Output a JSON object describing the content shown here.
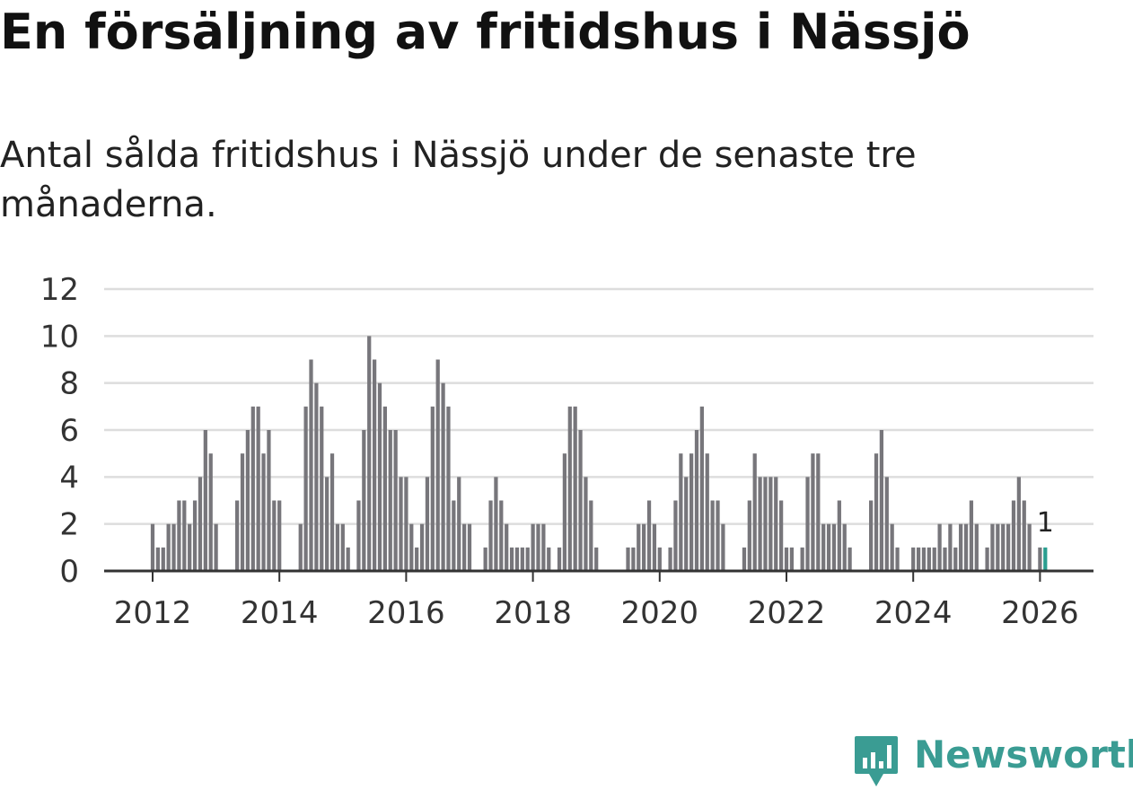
{
  "title": "En försäljning av fritidshus i Nässjö",
  "subtitle": "Antal sålda fritidshus i Nässjö under de senaste tre månaderna.",
  "brand": {
    "name": "Newsworthy",
    "color": "#3a9c93"
  },
  "colors": {
    "bar": "#77767b",
    "highlight": "#2a9d8f",
    "grid": "#dddddd",
    "axis": "#333333"
  },
  "chart_data": {
    "type": "bar",
    "title": "En försäljning av fritidshus i Nässjö",
    "xlabel": "",
    "ylabel": "",
    "ylim": [
      0,
      12
    ],
    "yticks": [
      0,
      2,
      4,
      6,
      8,
      10,
      12
    ],
    "xticks": [
      "2012",
      "2014",
      "2016",
      "2018",
      "2020",
      "2022",
      "2024",
      "2026"
    ],
    "start": "2012-01",
    "end": "2026-02",
    "highlight_label": "1",
    "values": [
      2,
      1,
      1,
      2,
      2,
      3,
      3,
      2,
      3,
      4,
      6,
      5,
      2,
      0,
      0,
      0,
      3,
      5,
      6,
      7,
      7,
      5,
      6,
      3,
      3,
      0,
      0,
      0,
      2,
      7,
      9,
      8,
      7,
      4,
      5,
      2,
      2,
      1,
      0,
      3,
      6,
      10,
      9,
      8,
      7,
      6,
      6,
      4,
      4,
      2,
      1,
      2,
      4,
      7,
      9,
      8,
      7,
      3,
      4,
      2,
      2,
      0,
      0,
      1,
      3,
      4,
      3,
      2,
      1,
      1,
      1,
      1,
      2,
      2,
      2,
      1,
      0,
      1,
      5,
      7,
      7,
      6,
      4,
      3,
      1,
      0,
      0,
      0,
      0,
      0,
      1,
      1,
      2,
      2,
      3,
      2,
      1,
      0,
      1,
      3,
      5,
      4,
      5,
      6,
      7,
      5,
      3,
      3,
      2,
      0,
      0,
      0,
      1,
      3,
      5,
      4,
      4,
      4,
      4,
      3,
      1,
      1,
      0,
      1,
      4,
      5,
      5,
      2,
      2,
      2,
      3,
      2,
      1,
      0,
      0,
      0,
      3,
      5,
      6,
      4,
      2,
      1,
      0,
      0,
      1,
      1,
      1,
      1,
      1,
      2,
      1,
      2,
      1,
      2,
      2,
      3,
      2,
      0,
      1,
      2,
      2,
      2,
      2,
      3,
      4,
      3,
      2,
      0,
      1,
      1
    ]
  }
}
